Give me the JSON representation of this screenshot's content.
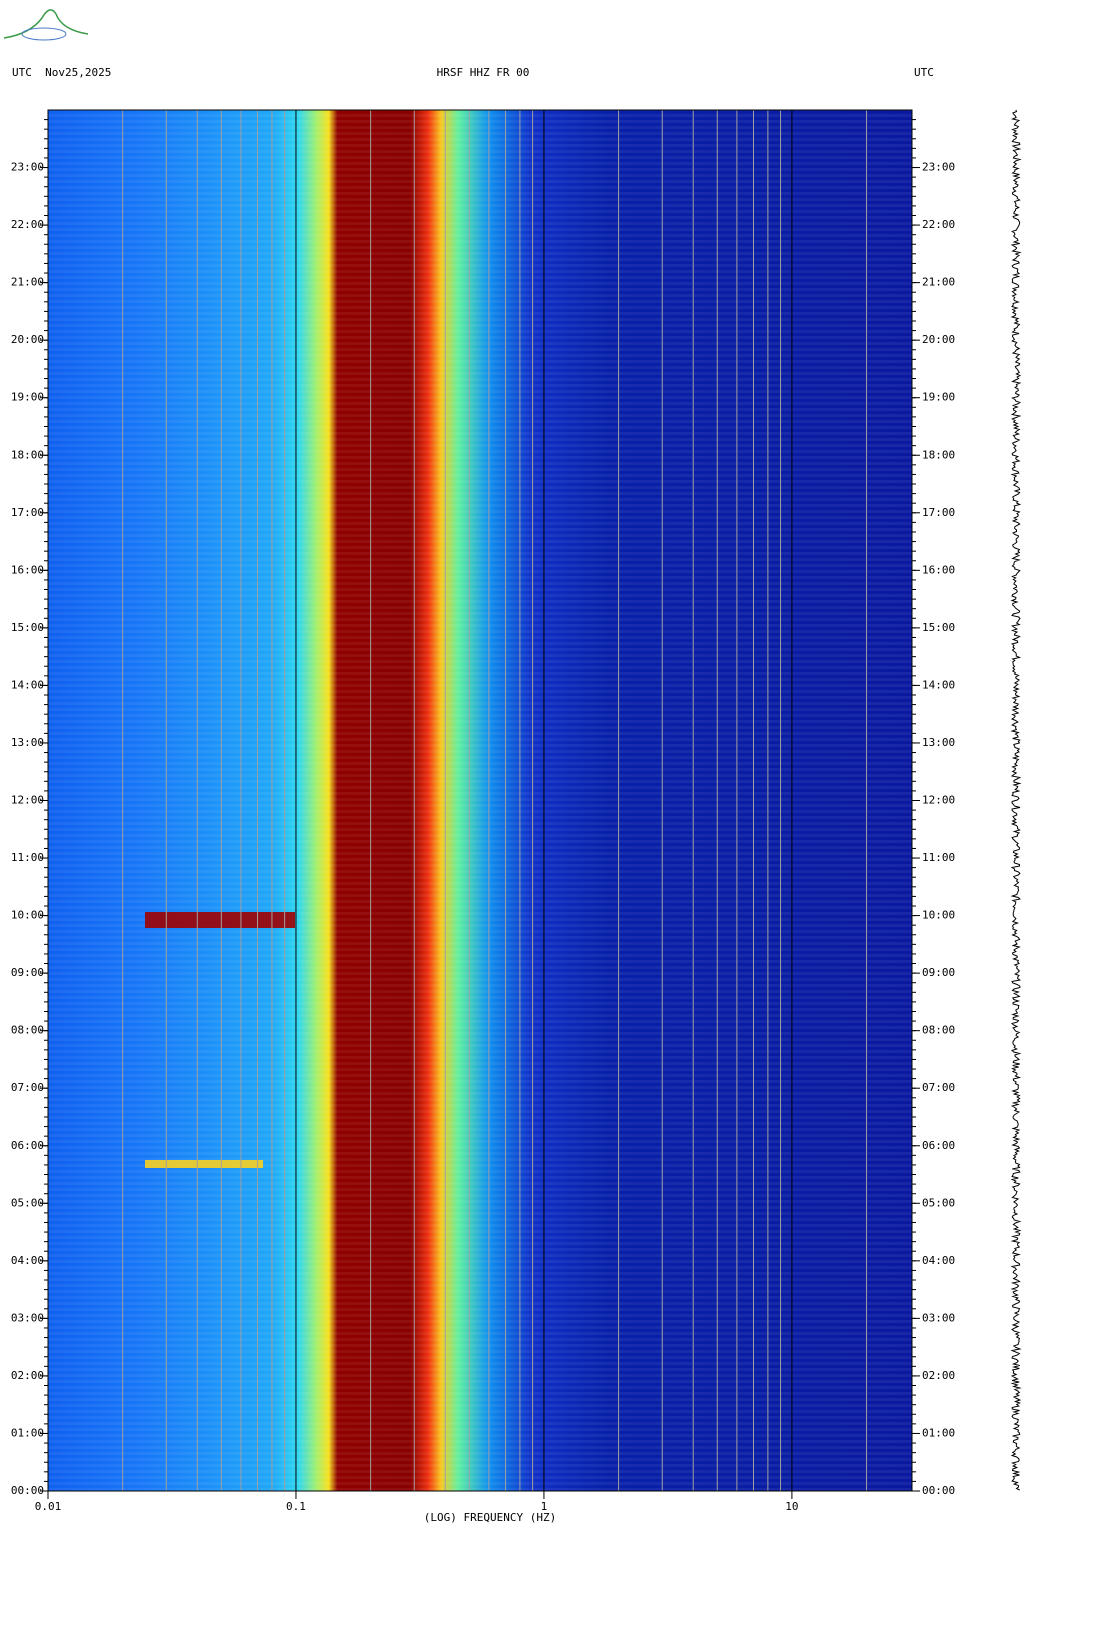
{
  "chart_data": {
    "type": "spectrogram",
    "title": "HRSF HHZ FR 00",
    "subtitle": "UTC  Nov25,2025",
    "right_header": "UTC",
    "xlabel": "(LOG) FREQUENCY (HZ)",
    "xscale": "log",
    "xlim": [
      0.01,
      30.5
    ],
    "xticks": [
      0.01,
      0.1,
      1,
      10
    ],
    "xgrid": [
      0.02,
      0.03,
      0.04,
      0.05,
      0.06,
      0.07,
      0.08,
      0.09,
      0.2,
      0.3,
      0.4,
      0.5,
      0.6,
      0.7,
      0.8,
      0.9,
      2,
      3,
      4,
      5,
      6,
      7,
      8,
      9,
      20
    ],
    "ylim": [
      0,
      24
    ],
    "yticks": [
      {
        "value": 0,
        "label": "00:00"
      },
      {
        "value": 1,
        "label": "01:00"
      },
      {
        "value": 2,
        "label": "02:00"
      },
      {
        "value": 3,
        "label": "03:00"
      },
      {
        "value": 4,
        "label": "04:00"
      },
      {
        "value": 5,
        "label": "05:00"
      },
      {
        "value": 6,
        "label": "06:00"
      },
      {
        "value": 7,
        "label": "07:00"
      },
      {
        "value": 8,
        "label": "08:00"
      },
      {
        "value": 9,
        "label": "09:00"
      },
      {
        "value": 10,
        "label": "10:00"
      },
      {
        "value": 11,
        "label": "11:00"
      },
      {
        "value": 12,
        "label": "12:00"
      },
      {
        "value": 13,
        "label": "13:00"
      },
      {
        "value": 14,
        "label": "14:00"
      },
      {
        "value": 15,
        "label": "15:00"
      },
      {
        "value": 16,
        "label": "16:00"
      },
      {
        "value": 17,
        "label": "17:00"
      },
      {
        "value": 18,
        "label": "18:00"
      },
      {
        "value": 19,
        "label": "19:00"
      },
      {
        "value": 20,
        "label": "20:00"
      },
      {
        "value": 21,
        "label": "21:00"
      },
      {
        "value": 22,
        "label": "22:00"
      },
      {
        "value": 23,
        "label": "23:00"
      }
    ]
  }
}
